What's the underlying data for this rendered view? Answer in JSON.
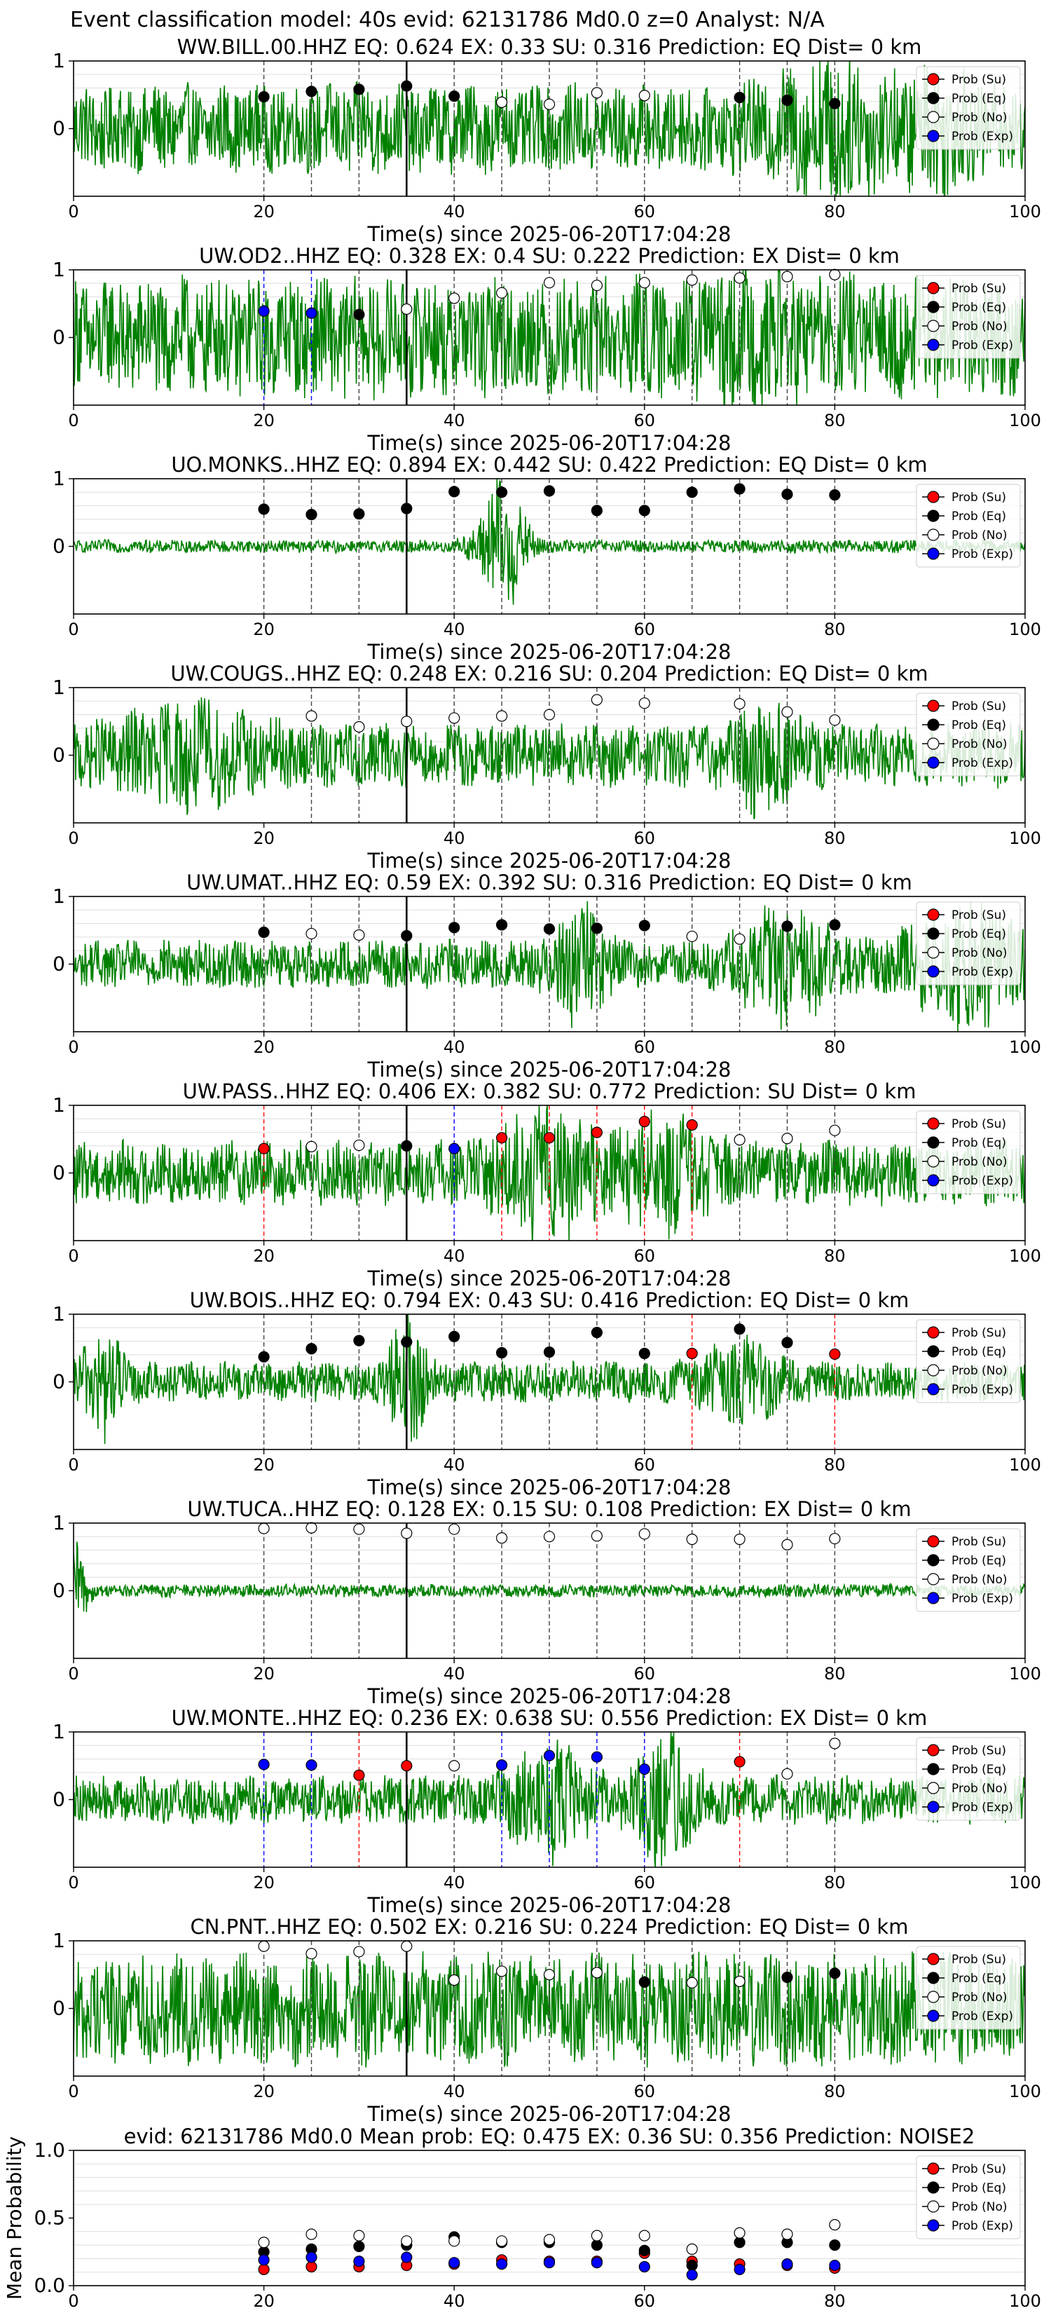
{
  "figure_title": "Event classification model: 40s evid: 62131786 Md0.0 z=0 Analyst: N/A",
  "legend_labels": [
    "Prob (Su)",
    "Prob (Eq)",
    "Prob (No)",
    "Prob (Exp)"
  ],
  "colors": {
    "su": "#ff0000",
    "eq": "#000000",
    "no": "#ffffff",
    "exp": "#0000ff",
    "waveform": "#008000",
    "axis": "#000000",
    "grid": "#dddddd"
  },
  "xlabel": "Time(s) since 2025-06-20T17:04:28",
  "pick_time": 35,
  "chart_data": [
    {
      "type": "scatter",
      "title": "WW.BILL.00.HHZ   EQ: 0.624   EX: 0.33   SU: 0.316   Prediction: EQ    Dist= 0 km",
      "xlim": [
        0,
        100
      ],
      "ylim": [
        -1,
        1
      ],
      "xticks": [
        0,
        20,
        40,
        60,
        80,
        100
      ],
      "yticks": [
        1,
        0
      ],
      "waveform_amp": 0.55,
      "waveform_bursts": [
        [
          30,
          3,
          0.6
        ],
        [
          80,
          6,
          1.0
        ],
        [
          91,
          4,
          0.9
        ]
      ],
      "xlabel": "Time(s) since 2025-06-20T17:04:28",
      "points": [
        {
          "t": 20,
          "c": "eq",
          "p": 0.47
        },
        {
          "t": 25,
          "c": "eq",
          "p": 0.55
        },
        {
          "t": 30,
          "c": "eq",
          "p": 0.58
        },
        {
          "t": 35,
          "c": "eq",
          "p": 0.63
        },
        {
          "t": 40,
          "c": "eq",
          "p": 0.48
        },
        {
          "t": 45,
          "c": "no",
          "p": 0.39
        },
        {
          "t": 50,
          "c": "no",
          "p": 0.36
        },
        {
          "t": 55,
          "c": "no",
          "p": 0.53
        },
        {
          "t": 60,
          "c": "no",
          "p": 0.49
        },
        {
          "t": 70,
          "c": "eq",
          "p": 0.46
        },
        {
          "t": 75,
          "c": "eq",
          "p": 0.42
        },
        {
          "t": 80,
          "c": "eq",
          "p": 0.37
        }
      ]
    },
    {
      "type": "scatter",
      "title": "UW.OD2..HHZ   EQ: 0.328   EX: 0.4   SU: 0.222   Prediction: EX    Dist= 0 km",
      "xlim": [
        0,
        100
      ],
      "ylim": [
        -1,
        1
      ],
      "xticks": [
        0,
        20,
        40,
        60,
        80,
        100
      ],
      "yticks": [
        1,
        0
      ],
      "waveform_amp": 0.75,
      "waveform_bursts": [
        [
          70,
          10,
          0.9
        ]
      ],
      "xlabel": "Time(s) since 2025-06-20T17:04:28",
      "points": [
        {
          "t": 20,
          "c": "exp",
          "p": 0.39
        },
        {
          "t": 25,
          "c": "exp",
          "p": 0.36
        },
        {
          "t": 30,
          "c": "eq",
          "p": 0.34
        },
        {
          "t": 35,
          "c": "no",
          "p": 0.42
        },
        {
          "t": 40,
          "c": "no",
          "p": 0.58
        },
        {
          "t": 45,
          "c": "no",
          "p": 0.66
        },
        {
          "t": 50,
          "c": "no",
          "p": 0.81
        },
        {
          "t": 55,
          "c": "no",
          "p": 0.77
        },
        {
          "t": 60,
          "c": "no",
          "p": 0.81
        },
        {
          "t": 65,
          "c": "no",
          "p": 0.85
        },
        {
          "t": 70,
          "c": "no",
          "p": 0.88
        },
        {
          "t": 75,
          "c": "no",
          "p": 0.9
        },
        {
          "t": 80,
          "c": "no",
          "p": 0.93
        }
      ]
    },
    {
      "type": "scatter",
      "title": "UO.MONKS..HHZ   EQ: 0.894   EX: 0.442   SU: 0.422   Prediction: EQ    Dist= 0 km",
      "xlim": [
        0,
        100
      ],
      "ylim": [
        -1,
        1
      ],
      "xticks": [
        0,
        20,
        40,
        60,
        80,
        100
      ],
      "yticks": [
        1,
        0
      ],
      "waveform_amp": 0.08,
      "waveform_bursts": [
        [
          45,
          2.5,
          0.9
        ]
      ],
      "xlabel": "Time(s) since 2025-06-20T17:04:28",
      "points": [
        {
          "t": 20,
          "c": "eq",
          "p": 0.55
        },
        {
          "t": 25,
          "c": "eq",
          "p": 0.47
        },
        {
          "t": 30,
          "c": "eq",
          "p": 0.48
        },
        {
          "t": 35,
          "c": "eq",
          "p": 0.56
        },
        {
          "t": 40,
          "c": "eq",
          "p": 0.81
        },
        {
          "t": 45,
          "c": "eq",
          "p": 0.8
        },
        {
          "t": 50,
          "c": "eq",
          "p": 0.82
        },
        {
          "t": 55,
          "c": "eq",
          "p": 0.53
        },
        {
          "t": 60,
          "c": "eq",
          "p": 0.53
        },
        {
          "t": 65,
          "c": "eq",
          "p": 0.8
        },
        {
          "t": 70,
          "c": "eq",
          "p": 0.85
        },
        {
          "t": 75,
          "c": "eq",
          "p": 0.77
        },
        {
          "t": 80,
          "c": "eq",
          "p": 0.76
        }
      ]
    },
    {
      "type": "scatter",
      "title": "UW.COUGS..HHZ   EQ: 0.248   EX: 0.216   SU: 0.204   Prediction: EQ    Dist= 0 km",
      "xlim": [
        0,
        100
      ],
      "ylim": [
        -1,
        1
      ],
      "xticks": [
        0,
        20,
        40,
        60,
        80,
        100
      ],
      "yticks": [
        1,
        0
      ],
      "waveform_amp": 0.4,
      "waveform_bursts": [
        [
          12,
          7,
          0.75
        ],
        [
          73,
          3,
          0.9
        ]
      ],
      "xlabel": "Time(s) since 2025-06-20T17:04:28",
      "points": [
        {
          "t": 25,
          "c": "no",
          "p": 0.58
        },
        {
          "t": 30,
          "c": "no",
          "p": 0.42
        },
        {
          "t": 35,
          "c": "no",
          "p": 0.5
        },
        {
          "t": 40,
          "c": "no",
          "p": 0.55
        },
        {
          "t": 45,
          "c": "no",
          "p": 0.58
        },
        {
          "t": 50,
          "c": "no",
          "p": 0.6
        },
        {
          "t": 55,
          "c": "no",
          "p": 0.82
        },
        {
          "t": 60,
          "c": "no",
          "p": 0.77
        },
        {
          "t": 70,
          "c": "no",
          "p": 0.76
        },
        {
          "t": 75,
          "c": "no",
          "p": 0.64
        },
        {
          "t": 80,
          "c": "no",
          "p": 0.52
        }
      ]
    },
    {
      "type": "scatter",
      "title": "UW.UMAT..HHZ   EQ: 0.59   EX: 0.392   SU: 0.316   Prediction: EQ    Dist= 0 km",
      "xlim": [
        0,
        100
      ],
      "ylim": [
        -1,
        1
      ],
      "xticks": [
        0,
        20,
        40,
        60,
        80,
        100
      ],
      "yticks": [
        1,
        0
      ],
      "waveform_amp": 0.3,
      "waveform_bursts": [
        [
          53,
          3,
          0.8
        ],
        [
          75,
          5,
          0.8
        ],
        [
          94,
          6,
          0.9
        ]
      ],
      "xlabel": "Time(s) since 2025-06-20T17:04:28",
      "points": [
        {
          "t": 20,
          "c": "eq",
          "p": 0.47
        },
        {
          "t": 25,
          "c": "no",
          "p": 0.45
        },
        {
          "t": 30,
          "c": "no",
          "p": 0.43
        },
        {
          "t": 35,
          "c": "eq",
          "p": 0.42
        },
        {
          "t": 40,
          "c": "eq",
          "p": 0.54
        },
        {
          "t": 45,
          "c": "eq",
          "p": 0.58
        },
        {
          "t": 50,
          "c": "eq",
          "p": 0.52
        },
        {
          "t": 55,
          "c": "eq",
          "p": 0.53
        },
        {
          "t": 60,
          "c": "eq",
          "p": 0.57
        },
        {
          "t": 65,
          "c": "no",
          "p": 0.41
        },
        {
          "t": 70,
          "c": "no",
          "p": 0.37
        },
        {
          "t": 75,
          "c": "eq",
          "p": 0.56
        },
        {
          "t": 80,
          "c": "eq",
          "p": 0.58
        }
      ]
    },
    {
      "type": "scatter",
      "title": "UW.PASS..HHZ   EQ: 0.406   EX: 0.382   SU: 0.772   Prediction: SU    Dist= 0 km",
      "xlim": [
        0,
        100
      ],
      "ylim": [
        -1,
        1
      ],
      "xticks": [
        0,
        20,
        40,
        60,
        80,
        100
      ],
      "yticks": [
        1,
        0
      ],
      "waveform_amp": 0.4,
      "waveform_bursts": [
        [
          50,
          5,
          0.95
        ],
        [
          62,
          5,
          0.8
        ]
      ],
      "xlabel": "Time(s) since 2025-06-20T17:04:28",
      "points": [
        {
          "t": 20,
          "c": "su",
          "p": 0.36
        },
        {
          "t": 25,
          "c": "no",
          "p": 0.39
        },
        {
          "t": 30,
          "c": "no",
          "p": 0.41
        },
        {
          "t": 35,
          "c": "eq",
          "p": 0.4
        },
        {
          "t": 40,
          "c": "exp",
          "p": 0.36
        },
        {
          "t": 45,
          "c": "su",
          "p": 0.52
        },
        {
          "t": 50,
          "c": "su",
          "p": 0.52
        },
        {
          "t": 55,
          "c": "su",
          "p": 0.6
        },
        {
          "t": 60,
          "c": "su",
          "p": 0.76
        },
        {
          "t": 65,
          "c": "su",
          "p": 0.71
        },
        {
          "t": 70,
          "c": "no",
          "p": 0.49
        },
        {
          "t": 75,
          "c": "no",
          "p": 0.51
        },
        {
          "t": 80,
          "c": "no",
          "p": 0.63
        }
      ]
    },
    {
      "type": "scatter",
      "title": "UW.BOIS..HHZ   EQ: 0.794   EX: 0.43   SU: 0.416   Prediction: EQ    Dist= 0 km",
      "xlim": [
        0,
        100
      ],
      "ylim": [
        -1,
        1
      ],
      "xticks": [
        0,
        20,
        40,
        60,
        80,
        100
      ],
      "yticks": [
        1,
        0
      ],
      "waveform_amp": 0.25,
      "waveform_bursts": [
        [
          3,
          2,
          0.8
        ],
        [
          35,
          2,
          0.9
        ],
        [
          70,
          4,
          0.6
        ]
      ],
      "xlabel": "Time(s) since 2025-06-20T17:04:28",
      "points": [
        {
          "t": 20,
          "c": "eq",
          "p": 0.37
        },
        {
          "t": 25,
          "c": "eq",
          "p": 0.49
        },
        {
          "t": 30,
          "c": "eq",
          "p": 0.61
        },
        {
          "t": 35,
          "c": "eq",
          "p": 0.59
        },
        {
          "t": 40,
          "c": "eq",
          "p": 0.67
        },
        {
          "t": 45,
          "c": "eq",
          "p": 0.43
        },
        {
          "t": 50,
          "c": "eq",
          "p": 0.44
        },
        {
          "t": 55,
          "c": "eq",
          "p": 0.73
        },
        {
          "t": 60,
          "c": "eq",
          "p": 0.42
        },
        {
          "t": 65,
          "c": "su",
          "p": 0.42
        },
        {
          "t": 70,
          "c": "eq",
          "p": 0.78
        },
        {
          "t": 75,
          "c": "eq",
          "p": 0.58
        },
        {
          "t": 80,
          "c": "su",
          "p": 0.41
        }
      ]
    },
    {
      "type": "scatter",
      "title": "UW.TUCA..HHZ   EQ: 0.128   EX: 0.15   SU: 0.108   Prediction: EX    Dist= 0 km",
      "xlim": [
        0,
        100
      ],
      "ylim": [
        -1,
        1
      ],
      "xticks": [
        0,
        20,
        40,
        60,
        80,
        100
      ],
      "yticks": [
        1,
        0
      ],
      "waveform_amp": 0.08,
      "waveform_bursts": [
        [
          0.5,
          1,
          0.6
        ]
      ],
      "xlabel": "Time(s) since 2025-06-20T17:04:28",
      "points": [
        {
          "t": 20,
          "c": "no",
          "p": 0.92
        },
        {
          "t": 25,
          "c": "no",
          "p": 0.93
        },
        {
          "t": 30,
          "c": "no",
          "p": 0.91
        },
        {
          "t": 35,
          "c": "no",
          "p": 0.85
        },
        {
          "t": 40,
          "c": "no",
          "p": 0.91
        },
        {
          "t": 45,
          "c": "no",
          "p": 0.78
        },
        {
          "t": 50,
          "c": "no",
          "p": 0.8
        },
        {
          "t": 55,
          "c": "no",
          "p": 0.81
        },
        {
          "t": 60,
          "c": "no",
          "p": 0.84
        },
        {
          "t": 65,
          "c": "no",
          "p": 0.76
        },
        {
          "t": 70,
          "c": "no",
          "p": 0.76
        },
        {
          "t": 75,
          "c": "no",
          "p": 0.68
        },
        {
          "t": 80,
          "c": "no",
          "p": 0.77
        }
      ]
    },
    {
      "type": "scatter",
      "title": "UW.MONTE..HHZ   EQ: 0.236   EX: 0.638   SU: 0.556   Prediction: EX    Dist= 0 km",
      "xlim": [
        0,
        100
      ],
      "ylim": [
        -1,
        1
      ],
      "xticks": [
        0,
        20,
        40,
        60,
        80,
        100
      ],
      "yticks": [
        1,
        0
      ],
      "waveform_amp": 0.3,
      "waveform_bursts": [
        [
          50,
          4,
          0.85
        ],
        [
          62,
          3,
          0.9
        ]
      ],
      "xlabel": "Time(s) since 2025-06-20T17:04:28",
      "points": [
        {
          "t": 20,
          "c": "exp",
          "p": 0.52
        },
        {
          "t": 25,
          "c": "exp",
          "p": 0.51
        },
        {
          "t": 30,
          "c": "su",
          "p": 0.36
        },
        {
          "t": 35,
          "c": "su",
          "p": 0.5
        },
        {
          "t": 40,
          "c": "no",
          "p": 0.5
        },
        {
          "t": 45,
          "c": "exp",
          "p": 0.51
        },
        {
          "t": 50,
          "c": "exp",
          "p": 0.65
        },
        {
          "t": 55,
          "c": "exp",
          "p": 0.63
        },
        {
          "t": 60,
          "c": "exp",
          "p": 0.45
        },
        {
          "t": 70,
          "c": "su",
          "p": 0.56
        },
        {
          "t": 75,
          "c": "no",
          "p": 0.38
        },
        {
          "t": 80,
          "c": "no",
          "p": 0.83
        }
      ]
    },
    {
      "type": "scatter",
      "title": "CN.PNT..HHZ   EQ: 0.502   EX: 0.216   SU: 0.224   Prediction: EQ    Dist= 0 km",
      "xlim": [
        0,
        100
      ],
      "ylim": [
        -1,
        1
      ],
      "xticks": [
        0,
        20,
        40,
        60,
        80,
        100
      ],
      "yticks": [
        1,
        0
      ],
      "waveform_amp": 0.7,
      "waveform_bursts": [],
      "xlabel": "Time(s) since 2025-06-20T17:04:28",
      "points": [
        {
          "t": 20,
          "c": "no",
          "p": 0.92
        },
        {
          "t": 25,
          "c": "no",
          "p": 0.81
        },
        {
          "t": 30,
          "c": "no",
          "p": 0.84
        },
        {
          "t": 35,
          "c": "no",
          "p": 0.92
        },
        {
          "t": 40,
          "c": "no",
          "p": 0.42
        },
        {
          "t": 45,
          "c": "no",
          "p": 0.55
        },
        {
          "t": 50,
          "c": "no",
          "p": 0.5
        },
        {
          "t": 55,
          "c": "no",
          "p": 0.53
        },
        {
          "t": 60,
          "c": "eq",
          "p": 0.39
        },
        {
          "t": 65,
          "c": "no",
          "p": 0.38
        },
        {
          "t": 70,
          "c": "no",
          "p": 0.4
        },
        {
          "t": 75,
          "c": "eq",
          "p": 0.46
        },
        {
          "t": 80,
          "c": "eq",
          "p": 0.52
        }
      ]
    },
    {
      "type": "scatter",
      "title": "evid: 62131786  Md0.0   Mean prob:   EQ: 0.475  EX: 0.36  SU: 0.356   Prediction: NOISE2",
      "xlim": [
        0,
        100
      ],
      "ylim": [
        0,
        1
      ],
      "xticks": [
        0,
        20,
        40,
        60,
        80,
        100
      ],
      "yticks": [
        0.0,
        0.5,
        1.0
      ],
      "ylabel": "Mean Probability",
      "series": [
        {
          "name": "Prob (Su)",
          "key": "su",
          "x": [
            20,
            25,
            30,
            35,
            40,
            45,
            50,
            55,
            60,
            65,
            70,
            75,
            80
          ],
          "y": [
            0.12,
            0.14,
            0.14,
            0.15,
            0.16,
            0.19,
            0.18,
            0.18,
            0.24,
            0.18,
            0.16,
            0.15,
            0.13
          ]
        },
        {
          "name": "Prob (Eq)",
          "key": "eq",
          "x": [
            20,
            25,
            30,
            35,
            40,
            45,
            50,
            55,
            60,
            65,
            70,
            75,
            80
          ],
          "y": [
            0.25,
            0.27,
            0.29,
            0.3,
            0.36,
            0.32,
            0.32,
            0.3,
            0.26,
            0.15,
            0.32,
            0.32,
            0.3
          ]
        },
        {
          "name": "Prob (No)",
          "key": "no",
          "x": [
            20,
            25,
            30,
            35,
            40,
            45,
            50,
            55,
            60,
            65,
            70,
            75,
            80
          ],
          "y": [
            0.32,
            0.38,
            0.37,
            0.33,
            0.33,
            0.33,
            0.34,
            0.37,
            0.37,
            0.27,
            0.39,
            0.38,
            0.45
          ]
        },
        {
          "name": "Prob (Exp)",
          "key": "exp",
          "x": [
            20,
            25,
            30,
            35,
            40,
            45,
            50,
            55,
            60,
            65,
            70,
            75,
            80
          ],
          "y": [
            0.19,
            0.21,
            0.18,
            0.21,
            0.17,
            0.16,
            0.17,
            0.17,
            0.14,
            0.08,
            0.12,
            0.16,
            0.15
          ]
        }
      ]
    }
  ]
}
